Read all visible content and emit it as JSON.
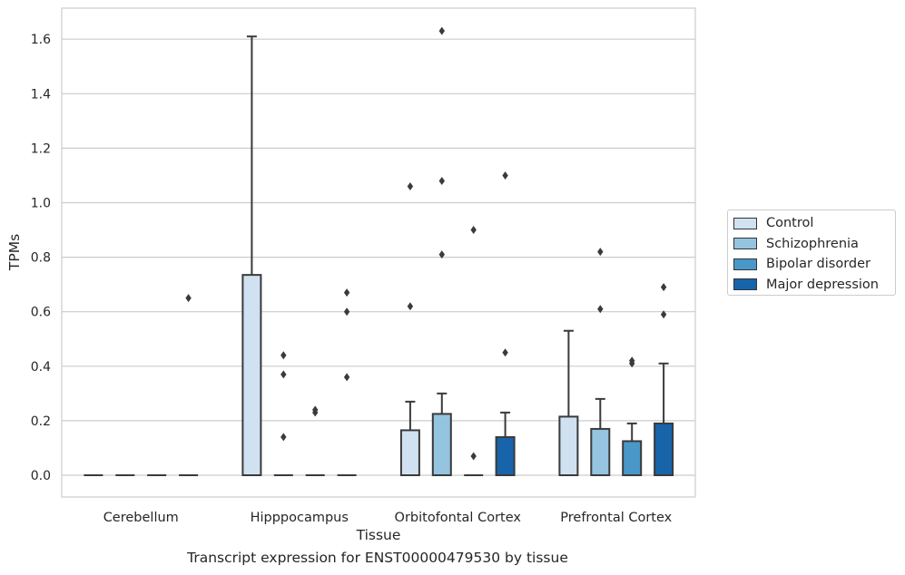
{
  "caption": "Transcript expression for ENST00000479530 by tissue",
  "chart_data": {
    "type": "box",
    "title": "",
    "xlabel": "Tissue",
    "ylabel": "TPMs",
    "ylim": [
      -0.08,
      1.71
    ],
    "yticks": [
      "0.0",
      "0.2",
      "0.4",
      "0.6",
      "0.8",
      "1.0",
      "1.2",
      "1.4",
      "1.6"
    ],
    "grid": "horizontal",
    "legend_position": "right",
    "categories": [
      "Cerebellum",
      "Hipppocampus",
      "Orbitofontal Cortex",
      "Prefrontal Cortex"
    ],
    "series": [
      {
        "name": "Control",
        "color": "#d0e1f2",
        "boxes": [
          {
            "category": "Cerebellum",
            "q1": 0,
            "median": 0,
            "q3": 0,
            "whisker_low": 0,
            "whisker_high": 0,
            "outliers": []
          },
          {
            "category": "Hipppocampus",
            "q1": 0,
            "median": 0,
            "q3": 0.735,
            "whisker_low": 0,
            "whisker_high": 1.61,
            "outliers": []
          },
          {
            "category": "Orbitofontal Cortex",
            "q1": 0,
            "median": 0,
            "q3": 0.165,
            "whisker_low": 0,
            "whisker_high": 0.27,
            "outliers": [
              0.62,
              1.06
            ]
          },
          {
            "category": "Prefrontal Cortex",
            "q1": 0,
            "median": 0,
            "q3": 0.215,
            "whisker_low": 0,
            "whisker_high": 0.53,
            "outliers": []
          }
        ]
      },
      {
        "name": "Schizophrenia",
        "color": "#94c4df",
        "boxes": [
          {
            "category": "Cerebellum",
            "q1": 0,
            "median": 0,
            "q3": 0,
            "whisker_low": 0,
            "whisker_high": 0,
            "outliers": []
          },
          {
            "category": "Hipppocampus",
            "q1": 0,
            "median": 0,
            "q3": 0,
            "whisker_low": 0,
            "whisker_high": 0,
            "outliers": [
              0.14,
              0.37,
              0.44
            ]
          },
          {
            "category": "Orbitofontal Cortex",
            "q1": 0,
            "median": 0,
            "q3": 0.225,
            "whisker_low": 0,
            "whisker_high": 0.3,
            "outliers": [
              0.81,
              1.08,
              1.63
            ]
          },
          {
            "category": "Prefrontal Cortex",
            "q1": 0,
            "median": 0,
            "q3": 0.17,
            "whisker_low": 0,
            "whisker_high": 0.28,
            "outliers": [
              0.61,
              0.82
            ]
          }
        ]
      },
      {
        "name": "Bipolar disorder",
        "color": "#4a98c9",
        "boxes": [
          {
            "category": "Cerebellum",
            "q1": 0,
            "median": 0,
            "q3": 0,
            "whisker_low": 0,
            "whisker_high": 0,
            "outliers": []
          },
          {
            "category": "Hipppocampus",
            "q1": 0,
            "median": 0,
            "q3": 0,
            "whisker_low": 0,
            "whisker_high": 0,
            "outliers": [
              0.23,
              0.24
            ]
          },
          {
            "category": "Orbitofontal Cortex",
            "q1": 0,
            "median": 0,
            "q3": 0,
            "whisker_low": 0,
            "whisker_high": 0,
            "outliers": [
              0.07,
              0.9
            ]
          },
          {
            "category": "Prefrontal Cortex",
            "q1": 0,
            "median": 0,
            "q3": 0.125,
            "whisker_low": 0,
            "whisker_high": 0.19,
            "outliers": [
              0.41,
              0.42
            ]
          }
        ]
      },
      {
        "name": "Major depression",
        "color": "#1764ab",
        "boxes": [
          {
            "category": "Cerebellum",
            "q1": 0,
            "median": 0,
            "q3": 0,
            "whisker_low": 0,
            "whisker_high": 0,
            "outliers": [
              0.65
            ]
          },
          {
            "category": "Hipppocampus",
            "q1": 0,
            "median": 0,
            "q3": 0,
            "whisker_low": 0,
            "whisker_high": 0,
            "outliers": [
              0.36,
              0.6,
              0.67
            ]
          },
          {
            "category": "Orbitofontal Cortex",
            "q1": 0,
            "median": 0,
            "q3": 0.14,
            "whisker_low": 0,
            "whisker_high": 0.23,
            "outliers": [
              0.45,
              1.1
            ]
          },
          {
            "category": "Prefrontal Cortex",
            "q1": 0,
            "median": 0,
            "q3": 0.19,
            "whisker_low": 0,
            "whisker_high": 0.41,
            "outliers": [
              0.59,
              0.69
            ]
          }
        ]
      }
    ]
  }
}
